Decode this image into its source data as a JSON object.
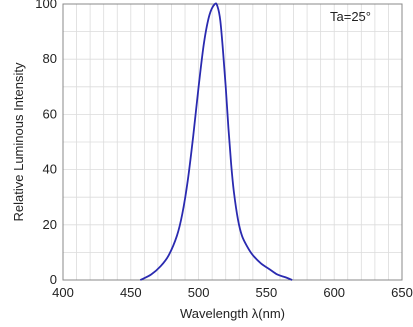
{
  "chart_data": {
    "type": "line",
    "title": "",
    "xlabel": "Wavelength λ(nm)",
    "ylabel": "Relative Luminous Intensity",
    "annotation": "Ta=25°",
    "xlim": [
      400,
      650
    ],
    "ylim": [
      0,
      100
    ],
    "x_ticks": [
      400,
      450,
      500,
      550,
      600,
      650
    ],
    "y_ticks": [
      0,
      20,
      40,
      60,
      80,
      100
    ],
    "x_minor_step": 10,
    "y_minor_step": 10,
    "grid": true,
    "series": [
      {
        "color": "#2a2ab0",
        "x": [
          457,
          465,
          472,
          478,
          484,
          488,
          492,
          496,
          500,
          504,
          508,
          512,
          514,
          516,
          518,
          520,
          522,
          524,
          526,
          529,
          532,
          536,
          540,
          546,
          552,
          558,
          564,
          569
        ],
        "y": [
          0,
          2,
          5,
          9,
          16,
          24,
          36,
          52,
          70,
          86,
          96,
          100,
          99,
          94,
          83,
          70,
          55,
          42,
          32,
          22,
          16,
          12,
          9,
          6,
          4,
          2,
          1,
          0
        ]
      }
    ]
  }
}
